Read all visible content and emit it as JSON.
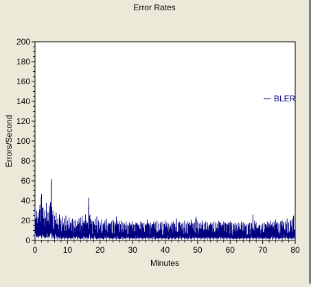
{
  "chart_data": {
    "type": "line",
    "title": "Error Rates",
    "xlabel": "Minutes",
    "ylabel": "Errors/Second",
    "xlim": [
      0,
      80
    ],
    "ylim": [
      0,
      200
    ],
    "xticks": [
      "0",
      "10",
      "20",
      "30",
      "40",
      "50",
      "60",
      "70",
      "80"
    ],
    "yticks": [
      "0",
      "20",
      "40",
      "60",
      "80",
      "100",
      "120",
      "140",
      "160",
      "180",
      "200"
    ],
    "grid": false,
    "legend_position": "right",
    "series": [
      {
        "name": "BLER",
        "color": "#000080",
        "x": [
          0,
          0.5,
          1,
          1.5,
          2,
          2.5,
          3,
          3.5,
          4,
          4.5,
          5,
          5.5,
          6,
          6.5,
          7,
          7.5,
          8,
          8.5,
          9,
          9.5,
          10,
          10.5,
          11,
          11.5,
          12,
          12.5,
          13,
          13.5,
          14,
          14.5,
          15,
          15.5,
          16,
          16.5,
          17,
          17.5,
          18,
          18.5,
          19,
          19.5,
          20,
          20.5,
          21,
          21.5,
          22,
          22.5,
          23,
          23.5,
          24,
          24.5,
          25,
          25.5,
          26,
          26.5,
          27,
          27.5,
          28,
          28.5,
          29,
          29.5,
          30,
          30.5,
          31,
          31.5,
          32,
          32.5,
          33,
          33.5,
          34,
          34.5,
          35,
          35.5,
          36,
          36.5,
          37,
          37.5,
          38,
          38.5,
          39,
          39.5,
          40,
          40.5,
          41,
          41.5,
          42,
          42.5,
          43,
          43.5,
          44,
          44.5,
          45,
          45.5,
          46,
          46.5,
          47,
          47.5,
          48,
          48.5,
          49,
          49.5,
          50,
          50.5,
          51,
          51.5,
          52,
          52.5,
          53,
          53.5,
          54,
          54.5,
          55,
          55.5,
          56,
          56.5,
          57,
          57.5,
          58,
          58.5,
          59,
          59.5,
          60,
          60.5,
          61,
          61.5,
          62,
          62.5,
          63,
          63.5,
          64,
          64.5,
          65,
          65.5,
          66,
          66.5,
          67,
          67.5,
          68,
          68.5,
          69,
          69.5,
          70,
          70.5,
          71,
          71.5,
          72,
          72.5,
          73,
          73.5,
          74,
          74.5,
          75,
          75.5,
          76,
          76.5,
          77,
          77.5,
          78,
          78.5,
          79,
          79.5,
          80
        ],
        "low": [
          2,
          3,
          2,
          4,
          2,
          3,
          2,
          3,
          2,
          3,
          2,
          2,
          1,
          2,
          1,
          2,
          1,
          2,
          1,
          2,
          1,
          2,
          1,
          2,
          1,
          2,
          1,
          2,
          1,
          2,
          1,
          2,
          1,
          2,
          1,
          2,
          1,
          2,
          1,
          2,
          1,
          2,
          1,
          2,
          1,
          2,
          1,
          2,
          1,
          2,
          1,
          2,
          1,
          2,
          1,
          2,
          1,
          2,
          1,
          2,
          1,
          2,
          1,
          2,
          1,
          2,
          1,
          2,
          1,
          2,
          1,
          2,
          1,
          2,
          1,
          2,
          1,
          2,
          1,
          2,
          1,
          2,
          1,
          2,
          1,
          2,
          1,
          2,
          1,
          2,
          1,
          2,
          1,
          2,
          1,
          2,
          1,
          2,
          1,
          2,
          1,
          2,
          1,
          2,
          1,
          2,
          1,
          2,
          1,
          2,
          1,
          2,
          1,
          2,
          1,
          2,
          1,
          2,
          1,
          2,
          1,
          2,
          1,
          2,
          1,
          2,
          1,
          2,
          1,
          2,
          1,
          2,
          1,
          2,
          1,
          2,
          1,
          2,
          1,
          2,
          1,
          2,
          1,
          2,
          1,
          2,
          1,
          2,
          1,
          2,
          1,
          2,
          1,
          2,
          1,
          2,
          1,
          2,
          1,
          2,
          1
        ],
        "high": [
          34,
          30,
          28,
          36,
          47,
          33,
          30,
          38,
          28,
          35,
          62,
          30,
          25,
          28,
          22,
          26,
          20,
          24,
          22,
          25,
          20,
          23,
          18,
          22,
          20,
          21,
          19,
          22,
          23,
          25,
          20,
          26,
          18,
          43,
          22,
          20,
          19,
          22,
          24,
          20,
          18,
          21,
          17,
          20,
          22,
          18,
          17,
          19,
          21,
          18,
          24,
          17,
          19,
          20,
          18,
          17,
          19,
          16,
          18,
          17,
          19,
          16,
          18,
          17,
          16,
          19,
          17,
          18,
          16,
          21,
          17,
          18,
          16,
          19,
          18,
          20,
          17,
          18,
          19,
          17,
          20,
          18,
          17,
          16,
          18,
          19,
          17,
          22,
          18,
          19,
          17,
          18,
          20,
          17,
          19,
          18,
          21,
          17,
          18,
          24,
          19,
          17,
          18,
          20,
          17,
          19,
          18,
          16,
          18,
          17,
          19,
          18,
          17,
          20,
          18,
          17,
          19,
          18,
          17,
          18,
          19,
          18,
          17,
          18,
          16,
          18,
          17,
          19,
          18,
          17,
          16,
          17,
          18,
          17,
          26,
          20,
          18,
          13,
          16,
          15,
          17,
          18,
          16,
          19,
          17,
          20,
          18,
          19,
          21,
          18,
          17,
          19,
          20,
          18,
          19,
          22,
          18,
          20,
          21,
          25,
          20
        ]
      }
    ]
  }
}
